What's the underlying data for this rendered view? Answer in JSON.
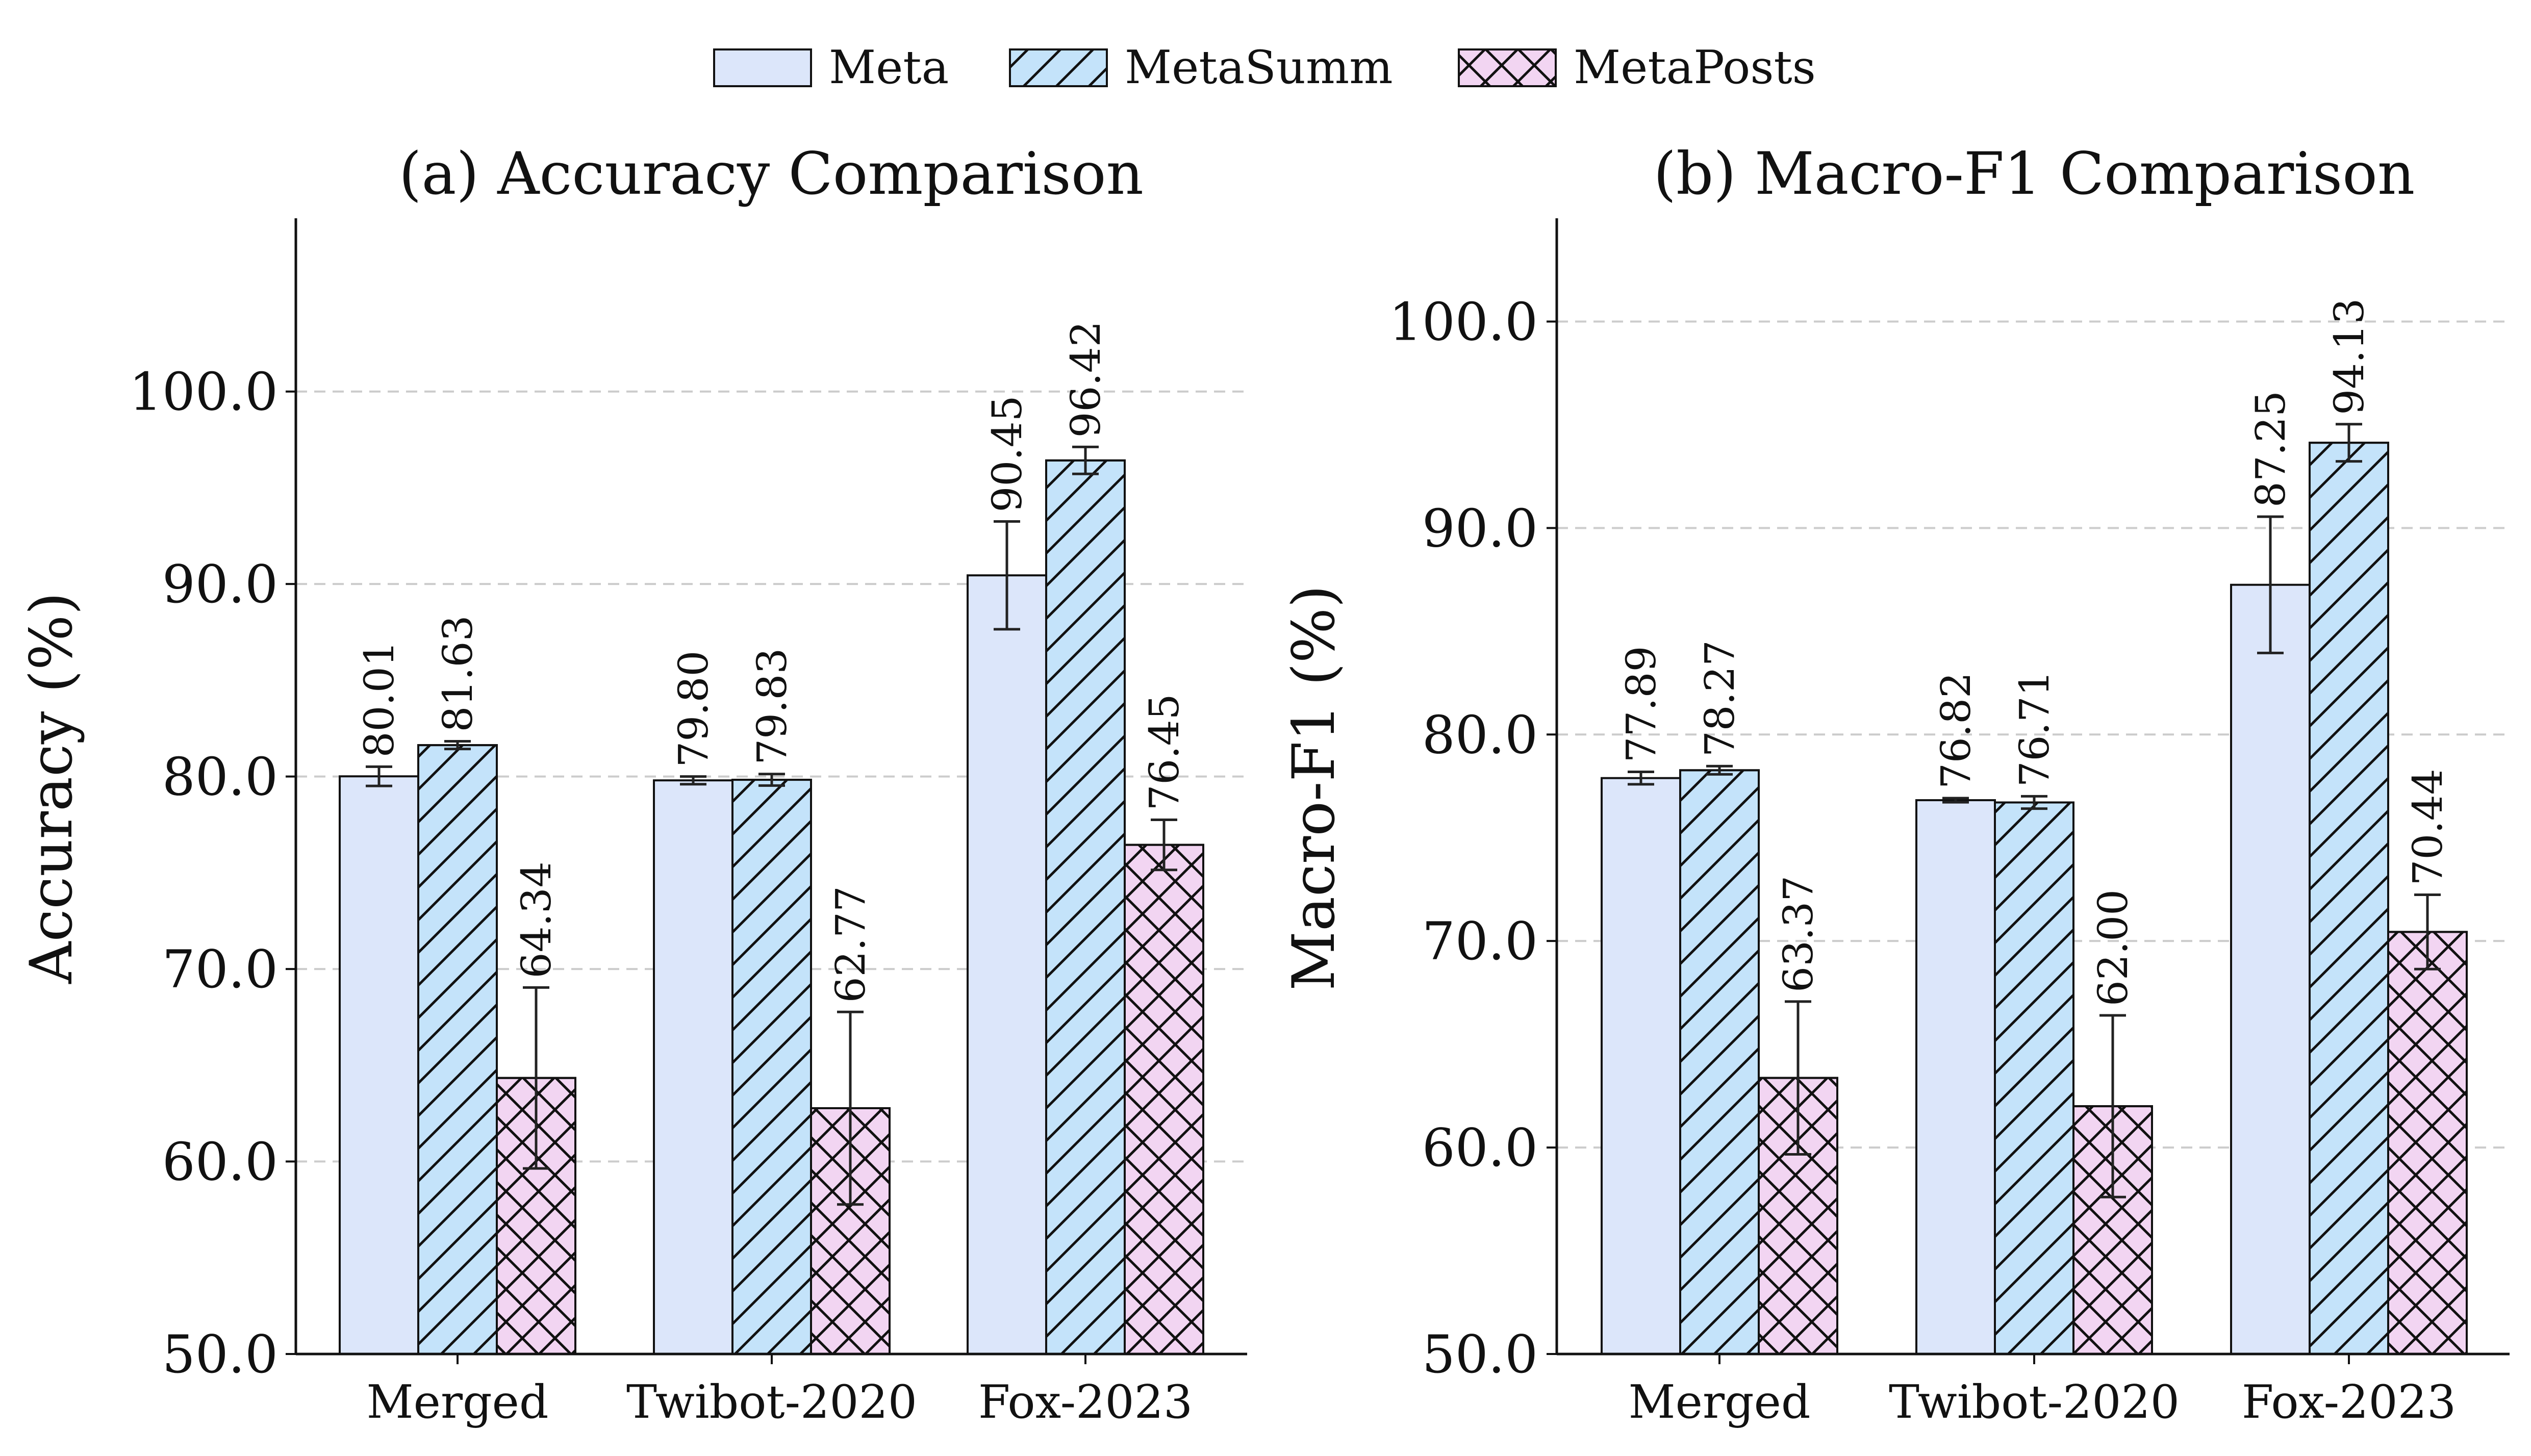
{
  "legend": [
    {
      "name": "Meta",
      "color": "#dce6fa",
      "hatch": "none"
    },
    {
      "name": "MetaSumm",
      "color": "#c4e3fa",
      "hatch": "diag"
    },
    {
      "name": "MetaPosts",
      "color": "#f2d5f2",
      "hatch": "cross"
    }
  ],
  "chart_data": [
    {
      "type": "bar",
      "title": "(a) Accuracy Comparison",
      "ylabel": "Accuracy (%)",
      "categories": [
        "Merged",
        "Twibot-2020",
        "Fox-2023"
      ],
      "ylim": [
        50,
        109
      ],
      "yticks": [
        "50.0",
        "60.0",
        "70.0",
        "80.0",
        "90.0",
        "100.0"
      ],
      "grid": "y-dashed",
      "series": [
        {
          "name": "Meta",
          "values": [
            80.01,
            79.8,
            90.45
          ],
          "errors": [
            0.5,
            0.2,
            2.8
          ],
          "labels": [
            "80.01",
            "79.80",
            "90.45"
          ]
        },
        {
          "name": "MetaSumm",
          "values": [
            81.63,
            79.83,
            96.42
          ],
          "errors": [
            0.2,
            0.3,
            0.7
          ],
          "labels": [
            "81.63",
            "79.83",
            "96.42"
          ]
        },
        {
          "name": "MetaPosts",
          "values": [
            64.34,
            62.77,
            76.45
          ],
          "errors": [
            4.7,
            5.0,
            1.3
          ],
          "labels": [
            "64.34",
            "62.77",
            "76.45"
          ]
        }
      ]
    },
    {
      "type": "bar",
      "title": "(b) Macro-F1 Comparison",
      "ylabel": "Macro-F1 (%)",
      "categories": [
        "Merged",
        "Twibot-2020",
        "Fox-2023"
      ],
      "ylim": [
        50,
        105
      ],
      "yticks": [
        "50.0",
        "60.0",
        "70.0",
        "80.0",
        "90.0",
        "100.0"
      ],
      "grid": "y-dashed",
      "series": [
        {
          "name": "Meta",
          "values": [
            77.89,
            76.82,
            87.25
          ],
          "errors": [
            0.3,
            0.1,
            3.3
          ],
          "labels": [
            "77.89",
            "76.82",
            "87.25"
          ]
        },
        {
          "name": "MetaSumm",
          "values": [
            78.27,
            76.71,
            94.13
          ],
          "errors": [
            0.2,
            0.3,
            0.9
          ],
          "labels": [
            "78.27",
            "76.71",
            "94.13"
          ]
        },
        {
          "name": "MetaPosts",
          "values": [
            63.37,
            62.0,
            70.44
          ],
          "errors": [
            3.7,
            4.4,
            1.8
          ],
          "labels": [
            "63.37",
            "62.00",
            "70.44"
          ]
        }
      ]
    }
  ]
}
